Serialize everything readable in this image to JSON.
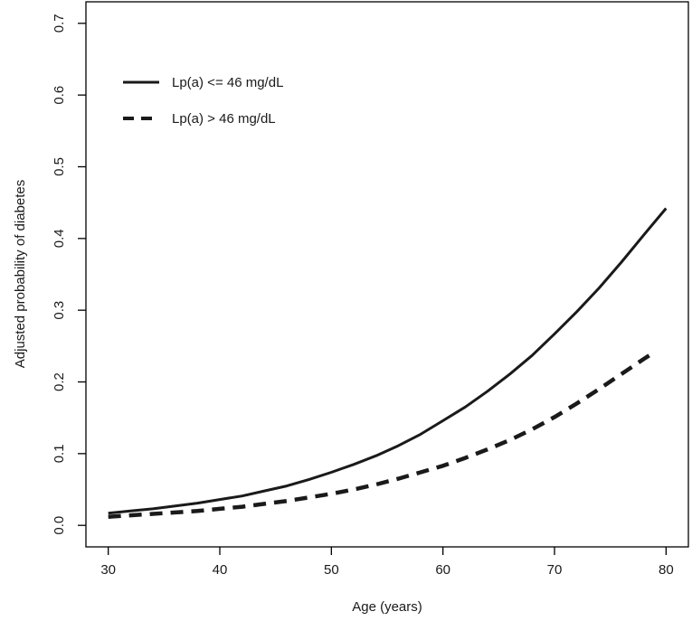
{
  "chart_data": {
    "type": "line",
    "title": "",
    "xlabel": "Age (years)",
    "ylabel": "Adjusted probability of diabetes",
    "xlim": [
      28,
      82
    ],
    "ylim": [
      -0.03,
      0.73
    ],
    "xticks": [
      30,
      40,
      50,
      60,
      70,
      80
    ],
    "yticks": [
      0.0,
      0.1,
      0.2,
      0.3,
      0.4,
      0.5,
      0.6,
      0.7
    ],
    "xtick_labels": [
      "30",
      "40",
      "50",
      "60",
      "70",
      "80"
    ],
    "ytick_labels": [
      "0.0",
      "0.1",
      "0.2",
      "0.3",
      "0.4",
      "0.5",
      "0.6",
      "0.7"
    ],
    "grid": false,
    "legend_position": "top-left",
    "series": [
      {
        "name": "Lp(a) <= 46 mg/dL",
        "style": "solid",
        "color": "#1a1a1a",
        "x": [
          30,
          32,
          34,
          36,
          38,
          40,
          42,
          44,
          46,
          48,
          50,
          52,
          54,
          56,
          58,
          60,
          62,
          64,
          66,
          68,
          70,
          72,
          74,
          76,
          78,
          80
        ],
        "y": [
          0.017,
          0.02,
          0.023,
          0.027,
          0.031,
          0.036,
          0.041,
          0.048,
          0.055,
          0.064,
          0.074,
          0.085,
          0.097,
          0.111,
          0.127,
          0.146,
          0.165,
          0.187,
          0.211,
          0.237,
          0.267,
          0.298,
          0.331,
          0.367,
          0.405,
          0.442
        ]
      },
      {
        "name": "Lp(a) > 46 mg/dL",
        "style": "dashed",
        "color": "#1a1a1a",
        "x": [
          30,
          32,
          34,
          36,
          38,
          40,
          42,
          44,
          46,
          48,
          50,
          52,
          54,
          56,
          58,
          60,
          62,
          64,
          66,
          68,
          70,
          72,
          74,
          76,
          78,
          79
        ],
        "y": [
          0.012,
          0.014,
          0.016,
          0.018,
          0.02,
          0.023,
          0.026,
          0.03,
          0.034,
          0.039,
          0.044,
          0.05,
          0.057,
          0.065,
          0.074,
          0.083,
          0.094,
          0.106,
          0.119,
          0.134,
          0.151,
          0.17,
          0.19,
          0.211,
          0.232,
          0.242
        ]
      }
    ]
  }
}
